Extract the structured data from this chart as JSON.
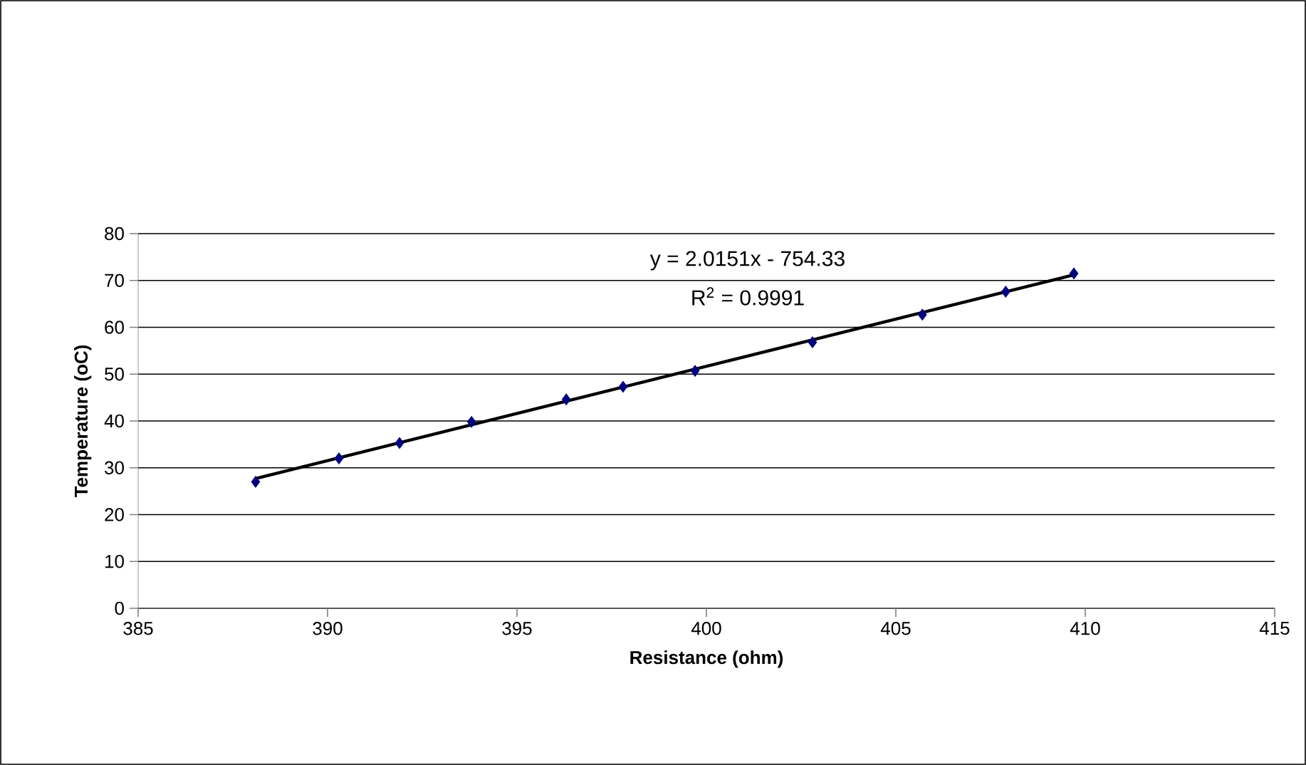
{
  "chart_data": {
    "type": "scatter",
    "xlabel": "Resistance (ohm)",
    "ylabel": "Temperature (oC)",
    "annotations": [
      "y = 2.0151x - 754.33",
      "R$^{2}$ = 0.9991"
    ],
    "xlim": [
      385,
      415
    ],
    "xticks": [
      385,
      390,
      395,
      400,
      405,
      410,
      415
    ],
    "ylim": [
      0,
      80
    ],
    "yticks": [
      0,
      10,
      20,
      30,
      40,
      50,
      60,
      70,
      80
    ],
    "grid": "y",
    "marker": "diamond",
    "series": [
      {
        "type": "scatter",
        "color": "#000080",
        "x": [
          388.1,
          390.3,
          391.9,
          393.8,
          396.3,
          397.8,
          399.7,
          402.8,
          405.7,
          407.9,
          409.7
        ],
        "values": [
          27,
          32,
          35.3,
          39.8,
          44.6,
          47.3,
          50.7,
          56.8,
          62.7,
          67.6,
          71.5
        ]
      },
      {
        "type": "line",
        "color": "#000000",
        "marker": "none",
        "line_style": "solid",
        "x": [
          388.1,
          409.7
        ],
        "values": [
          27.7,
          71.2
        ]
      }
    ]
  }
}
